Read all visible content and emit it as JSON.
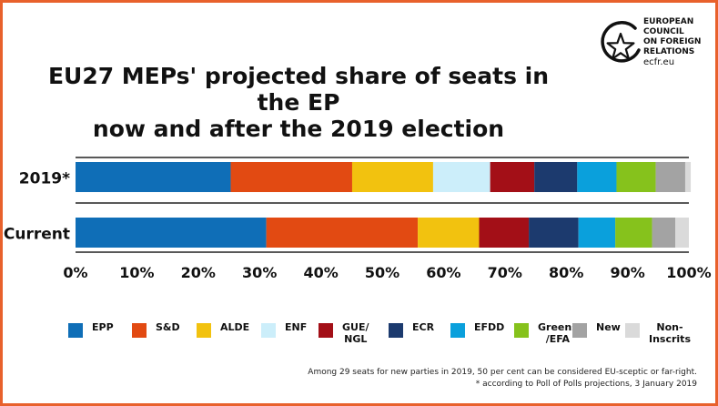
{
  "title_line1": "EU27 MEPs' projected share of seats in the EP",
  "title_line2": "now and after the 2019 election",
  "logo": {
    "lines": [
      "EUROPEAN",
      "COUNCIL",
      "ON FOREIGN",
      "RELATIONS"
    ],
    "url": "ecfr.eu",
    "icon": "star-in-circle-icon"
  },
  "notes": {
    "line1": "Among 29 seats for new parties in 2019, 50 per cent can be considered EU-sceptic or far-right.",
    "line2": "* according to Poll of Polls projections, 3 January 2019"
  },
  "colors": {
    "accent_border": "#e8612c",
    "EPP": "#0f6eb7",
    "S&D": "#e24a12",
    "ALDE": "#f2c20f",
    "ENF": "#cceefa",
    "GUE/NGL": "#a30f17",
    "ECR": "#1c3a6e",
    "EFDD": "#0aa0dc",
    "Greens/EFA": "#86c21c",
    "New": "#a3a3a3",
    "Non-Inscrits": "#dadada"
  },
  "chart_data": {
    "type": "bar",
    "orientation": "horizontal",
    "stacked": true,
    "categories": [
      "2019*",
      "Current"
    ],
    "xlim": [
      0,
      100
    ],
    "x_tick_labels": [
      "0%",
      "10%",
      "20%",
      "30%",
      "40%",
      "50%",
      "60%",
      "70%",
      "80%",
      "90%",
      "100%"
    ],
    "grid": false,
    "legend_position": "bottom",
    "series": [
      {
        "name": "EPP",
        "label": "EPP",
        "values": [
          25.3,
          31.1
        ]
      },
      {
        "name": "S&D",
        "label": "S&D",
        "values": [
          19.8,
          24.7
        ]
      },
      {
        "name": "ALDE",
        "label": "ALDE",
        "values": [
          13.2,
          10.0
        ]
      },
      {
        "name": "ENF",
        "label": "ENF",
        "values": [
          9.3,
          0.0
        ]
      },
      {
        "name": "GUE/NGL",
        "label": "GUE/\nNGL",
        "values": [
          7.2,
          8.1
        ]
      },
      {
        "name": "ECR",
        "label": "ECR",
        "values": [
          7.0,
          8.1
        ]
      },
      {
        "name": "EFDD",
        "label": "EFDD",
        "values": [
          6.4,
          6.0
        ]
      },
      {
        "name": "Greens/EFA",
        "label": "Greens\n/EFA",
        "values": [
          6.4,
          6.0
        ]
      },
      {
        "name": "New",
        "label": "New",
        "values": [
          4.8,
          3.8
        ]
      },
      {
        "name": "Non-Inscrits",
        "label": "Non-\nInscrits",
        "values": [
          0.9,
          2.2
        ]
      }
    ]
  }
}
